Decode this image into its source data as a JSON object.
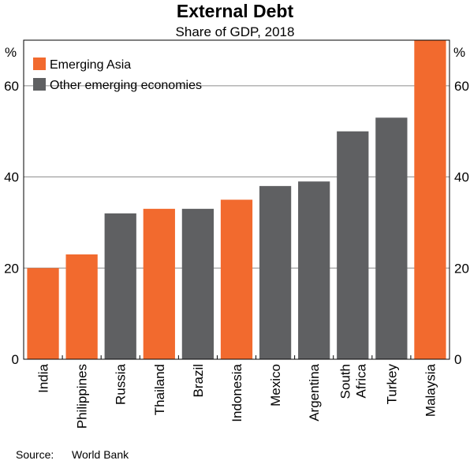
{
  "chart_data": {
    "type": "bar",
    "title": "External Debt",
    "subtitle": "Share of GDP, 2018",
    "unit_left": "%",
    "unit_right": "%",
    "categories": [
      "India",
      "Philippines",
      "Russia",
      "Thailand",
      "Brazil",
      "Indonesia",
      "Mexico",
      "Argentina",
      "South Africa",
      "Turkey",
      "Malaysia"
    ],
    "values": [
      20,
      23,
      32,
      33,
      33,
      35,
      38,
      39,
      50,
      53,
      70
    ],
    "groups": [
      "Emerging Asia",
      "Emerging Asia",
      "Other emerging economies",
      "Emerging Asia",
      "Other emerging economies",
      "Emerging Asia",
      "Other emerging economies",
      "Other emerging economies",
      "Other emerging economies",
      "Other emerging economies",
      "Emerging Asia"
    ],
    "legend": [
      {
        "name": "Emerging Asia",
        "color": "#f26a2e"
      },
      {
        "name": "Other emerging economies",
        "color": "#5f6062"
      }
    ],
    "ylim": [
      0,
      70
    ],
    "yticks": [
      0,
      20,
      40,
      60
    ],
    "grid": true,
    "legend_position": "top-left",
    "source_label": "Source:",
    "source": "World Bank"
  }
}
